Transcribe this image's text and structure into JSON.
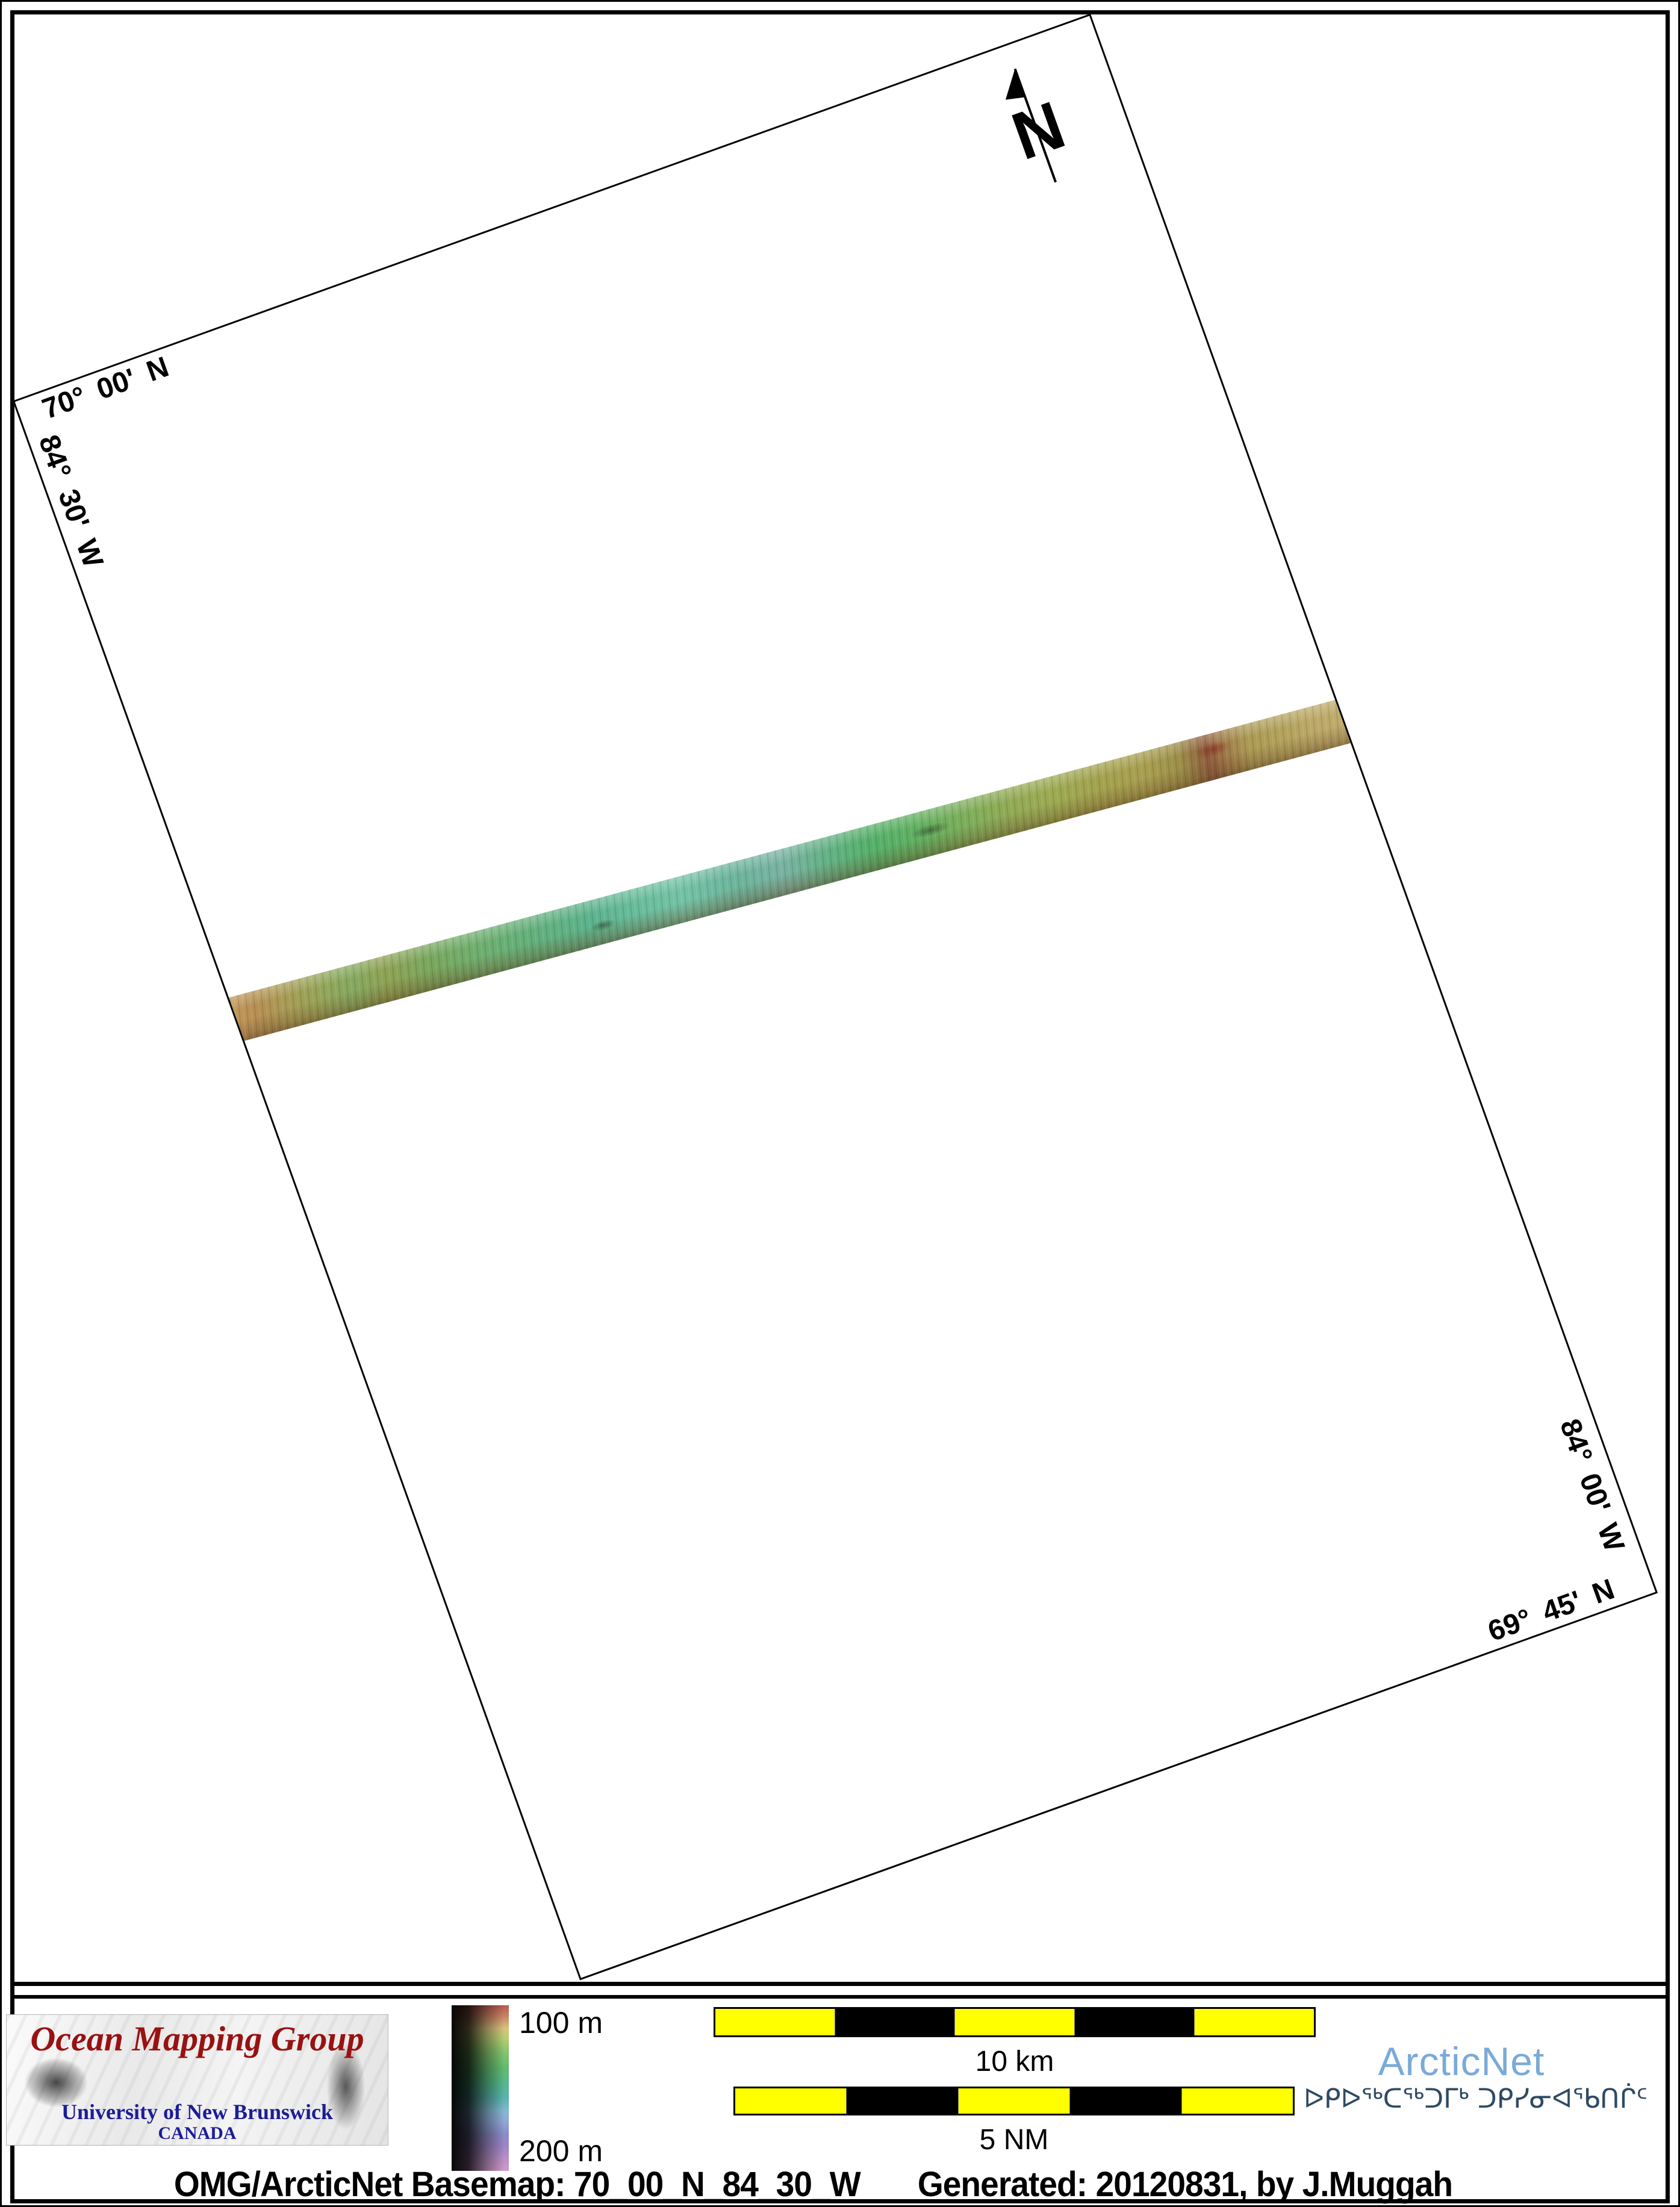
{
  "map": {
    "graticule": {
      "top_lat": "70° 00' N",
      "left_lon": "84° 30' W",
      "right_lon": "84° 00' W",
      "bottom_lat": "69° 45' N"
    },
    "north_letter": "N"
  },
  "legend": {
    "shallow_label": "100 m",
    "deep_label": "200 m"
  },
  "scale_bars": {
    "metric_label": "10 km",
    "nautical_label": "5 NM"
  },
  "branding": {
    "omg_title": "Ocean Mapping Group",
    "omg_university": "University of New Brunswick",
    "omg_country": "CANADA",
    "arcticnet_name": "ArcticNet",
    "arcticnet_inuktitut": "ᐅᑭᐅᖅᑕᖅᑐᒥᒃ ᑐᑭᓯᓂᐊᖃᑎᒌᑦ"
  },
  "caption": {
    "basemap": "OMG/ArcticNet Basemap: 70_00_N_84_30_W",
    "generated": "Generated: 20120831, by J.Muggah"
  },
  "colors": {
    "omg_red": "#991111",
    "unb_navy": "#1c1c99",
    "arcticnet_blue": "#7aaad8",
    "inuktitut_navy": "#2f4a63",
    "scalebar_yellow": "#ffff00",
    "frame_black": "#000000"
  }
}
